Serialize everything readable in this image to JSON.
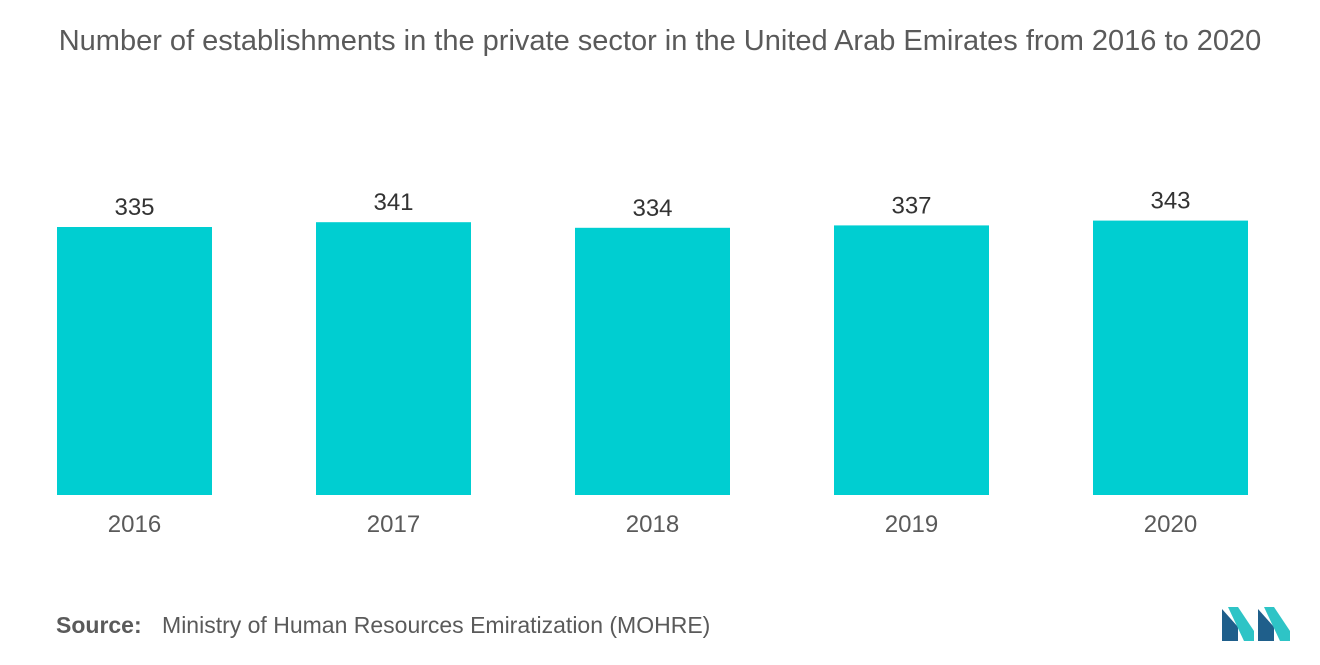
{
  "chart_data": {
    "type": "bar",
    "title": "Number of establishments in the private sector in the United Arab Emirates from 2016 to 2020",
    "categories": [
      "2016",
      "2017",
      "2018",
      "2019",
      "2020"
    ],
    "values": [
      335,
      341,
      334,
      337,
      343
    ],
    "data_labels": [
      "335",
      "341",
      "334",
      "337",
      "343"
    ],
    "xlabel": "",
    "ylabel": "",
    "grid": false,
    "legend": "none"
  },
  "source": {
    "label": "Source:",
    "text": "Ministry of Human Resources Emiratization (MOHRE)"
  },
  "colors": {
    "bar": "#00ced1",
    "text": "#5a5a5a",
    "label": "#333333",
    "logo_dark": "#1f5f8b",
    "logo_light": "#2ec4c6"
  },
  "logo": {
    "icon": "mordor-intelligence-logo-icon"
  }
}
